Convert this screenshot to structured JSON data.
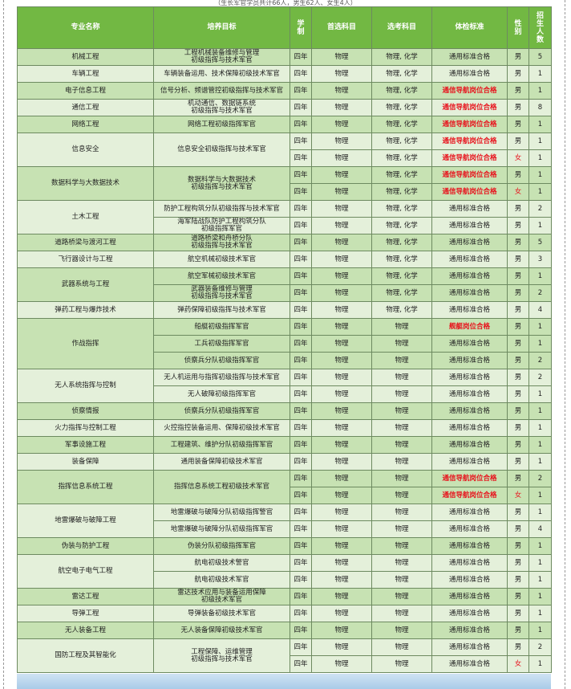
{
  "subtitle": "（生长军官学员共计66人，男生62人、女生4人）",
  "headers": {
    "major": "专业名称",
    "goal": "培养目标",
    "years": "学制",
    "first": "首选科目",
    "elective": "选考科目",
    "physical": "体检标准",
    "gender": "性别",
    "count": "招生人数"
  },
  "colors": {
    "header": "#72b843",
    "shade_dark": "#c7e2b3",
    "shade_light": "#e4f0da",
    "highlight_red": "#e8111b"
  },
  "majors": [
    {
      "name": "机械工程",
      "tracks": [
        {
          "goal": "工程机械装备维修与管理\n初级指挥与技术军官",
          "rows": [
            {
              "years": "四年",
              "first": "物理",
              "elective": "物理, 化学",
              "physical": "通用标准合格",
              "gender": "男",
              "count": "5"
            }
          ]
        }
      ]
    },
    {
      "name": "车辆工程",
      "tracks": [
        {
          "goal": "车辆装备运用、技术保障初级技术军官",
          "rows": [
            {
              "years": "四年",
              "first": "物理",
              "elective": "物理, 化学",
              "physical": "通用标准合格",
              "gender": "男",
              "count": "1"
            }
          ]
        }
      ]
    },
    {
      "name": "电子信息工程",
      "tracks": [
        {
          "goal": "信号分析、频谱管控初级指挥与技术军官",
          "rows": [
            {
              "years": "四年",
              "first": "物理",
              "elective": "物理, 化学",
              "physical": "通信导航岗位合格",
              "special": true,
              "gender": "男",
              "count": "1"
            }
          ]
        }
      ]
    },
    {
      "name": "通信工程",
      "tracks": [
        {
          "goal": "机动通信、数据链系统\n初级指挥与技术军官",
          "rows": [
            {
              "years": "四年",
              "first": "物理",
              "elective": "物理, 化学",
              "physical": "通信导航岗位合格",
              "special": true,
              "gender": "男",
              "count": "8"
            }
          ]
        }
      ]
    },
    {
      "name": "网络工程",
      "tracks": [
        {
          "goal": "网络工程初级指挥军官",
          "rows": [
            {
              "years": "四年",
              "first": "物理",
              "elective": "物理, 化学",
              "physical": "通信导航岗位合格",
              "special": true,
              "gender": "男",
              "count": "1"
            }
          ]
        }
      ]
    },
    {
      "name": "信息安全",
      "tracks": [
        {
          "goal": "信息安全初级指挥与技术军官",
          "rows": [
            {
              "years": "四年",
              "first": "物理",
              "elective": "物理, 化学",
              "physical": "通信导航岗位合格",
              "special": true,
              "gender": "男",
              "count": "1"
            },
            {
              "years": "四年",
              "first": "物理",
              "elective": "物理, 化学",
              "physical": "通信导航岗位合格",
              "special": true,
              "gender": "女",
              "count": "1"
            }
          ]
        }
      ]
    },
    {
      "name": "数据科学与大数据技术",
      "tracks": [
        {
          "goal": "数据科学与大数据技术\n初级指挥与技术军官",
          "rows": [
            {
              "years": "四年",
              "first": "物理",
              "elective": "物理, 化学",
              "physical": "通信导航岗位合格",
              "special": true,
              "gender": "男",
              "count": "1"
            },
            {
              "years": "四年",
              "first": "物理",
              "elective": "物理, 化学",
              "physical": "通信导航岗位合格",
              "special": true,
              "gender": "女",
              "count": "1"
            }
          ]
        }
      ]
    },
    {
      "name": "土木工程",
      "tracks": [
        {
          "goal": "防护工程构筑分队初级指挥与技术军官",
          "rows": [
            {
              "years": "四年",
              "first": "物理",
              "elective": "物理, 化学",
              "physical": "通用标准合格",
              "gender": "男",
              "count": "2"
            }
          ]
        },
        {
          "goal": "海军陆战队防护工程构筑分队\n初级指挥军官",
          "rows": [
            {
              "years": "四年",
              "first": "物理",
              "elective": "物理, 化学",
              "physical": "通用标准合格",
              "gender": "男",
              "count": "1"
            }
          ]
        }
      ]
    },
    {
      "name": "道路桥梁与渡河工程",
      "tracks": [
        {
          "goal": "道路桥梁和舟桥分队\n初级指挥与技术军官",
          "rows": [
            {
              "years": "四年",
              "first": "物理",
              "elective": "物理, 化学",
              "physical": "通用标准合格",
              "gender": "男",
              "count": "5"
            }
          ]
        }
      ]
    },
    {
      "name": "飞行器设计与工程",
      "tracks": [
        {
          "goal": "航空机械初级技术军官",
          "rows": [
            {
              "years": "四年",
              "first": "物理",
              "elective": "物理, 化学",
              "physical": "通用标准合格",
              "gender": "男",
              "count": "3"
            }
          ]
        }
      ]
    },
    {
      "name": "武器系统与工程",
      "tracks": [
        {
          "goal": "航空军械初级技术军官",
          "rows": [
            {
              "years": "四年",
              "first": "物理",
              "elective": "物理, 化学",
              "physical": "通用标准合格",
              "gender": "男",
              "count": "1"
            }
          ]
        },
        {
          "goal": "武器装备维修与管理\n初级指挥与技术军官",
          "rows": [
            {
              "years": "四年",
              "first": "物理",
              "elective": "物理, 化学",
              "physical": "通用标准合格",
              "gender": "男",
              "count": "2"
            }
          ]
        }
      ]
    },
    {
      "name": "弹药工程与爆炸技术",
      "tracks": [
        {
          "goal": "弹药保障初级指挥与技术军官",
          "rows": [
            {
              "years": "四年",
              "first": "物理",
              "elective": "物理, 化学",
              "physical": "通用标准合格",
              "gender": "男",
              "count": "4"
            }
          ]
        }
      ]
    },
    {
      "name": "作战指挥",
      "tracks": [
        {
          "goal": "船艇初级指挥军官",
          "rows": [
            {
              "years": "四年",
              "first": "物理",
              "elective": "物理",
              "physical": "舰艇岗位合格",
              "special": true,
              "gender": "男",
              "count": "1"
            }
          ]
        },
        {
          "goal": "工兵初级指挥军官",
          "rows": [
            {
              "years": "四年",
              "first": "物理",
              "elective": "物理",
              "physical": "通用标准合格",
              "gender": "男",
              "count": "1"
            }
          ]
        },
        {
          "goal": "侦察兵分队初级指挥军官",
          "rows": [
            {
              "years": "四年",
              "first": "物理",
              "elective": "物理",
              "physical": "通用标准合格",
              "gender": "男",
              "count": "2"
            }
          ]
        }
      ]
    },
    {
      "name": "无人系统指挥与控制",
      "tracks": [
        {
          "goal": "无人机运用与指挥初级指挥与技术军官",
          "rows": [
            {
              "years": "四年",
              "first": "物理",
              "elective": "物理",
              "physical": "通用标准合格",
              "gender": "男",
              "count": "2"
            }
          ]
        },
        {
          "goal": "无人破障初级指挥军官",
          "rows": [
            {
              "years": "四年",
              "first": "物理",
              "elective": "物理",
              "physical": "通用标准合格",
              "gender": "男",
              "count": "1"
            }
          ]
        }
      ]
    },
    {
      "name": "侦察情报",
      "tracks": [
        {
          "goal": "侦察兵分队初级指挥军官",
          "rows": [
            {
              "years": "四年",
              "first": "物理",
              "elective": "物理",
              "physical": "通用标准合格",
              "gender": "男",
              "count": "1"
            }
          ]
        }
      ]
    },
    {
      "name": "火力指挥与控制工程",
      "tracks": [
        {
          "goal": "火控指控装备运用、保障初级技术军官",
          "rows": [
            {
              "years": "四年",
              "first": "物理",
              "elective": "物理",
              "physical": "通用标准合格",
              "gender": "男",
              "count": "1"
            }
          ]
        }
      ]
    },
    {
      "name": "军事设施工程",
      "tracks": [
        {
          "goal": "工程建筑、维护分队初级指挥军官",
          "rows": [
            {
              "years": "四年",
              "first": "物理",
              "elective": "物理",
              "physical": "通用标准合格",
              "gender": "男",
              "count": "1"
            }
          ]
        }
      ]
    },
    {
      "name": "装备保障",
      "tracks": [
        {
          "goal": "通用装备保障初级技术军官",
          "rows": [
            {
              "years": "四年",
              "first": "物理",
              "elective": "物理",
              "physical": "通用标准合格",
              "gender": "男",
              "count": "1"
            }
          ]
        }
      ]
    },
    {
      "name": "指挥信息系统工程",
      "tracks": [
        {
          "goal": "指挥信息系统工程初级技术军官",
          "rows": [
            {
              "years": "四年",
              "first": "物理",
              "elective": "物理",
              "physical": "通信导航岗位合格",
              "special": true,
              "gender": "男",
              "count": "2"
            },
            {
              "years": "四年",
              "first": "物理",
              "elective": "物理",
              "physical": "通信导航岗位合格",
              "special": true,
              "gender": "女",
              "count": "1"
            }
          ]
        }
      ]
    },
    {
      "name": "地雷爆破与破障工程",
      "tracks": [
        {
          "goal": "地雷爆破与破障分队初级指挥警官",
          "rows": [
            {
              "years": "四年",
              "first": "物理",
              "elective": "物理",
              "physical": "通用标准合格",
              "gender": "男",
              "count": "1"
            }
          ]
        },
        {
          "goal": "地雷爆破与破障分队初级指挥军官",
          "rows": [
            {
              "years": "四年",
              "first": "物理",
              "elective": "物理",
              "physical": "通用标准合格",
              "gender": "男",
              "count": "4"
            }
          ]
        }
      ]
    },
    {
      "name": "伪装与防护工程",
      "tracks": [
        {
          "goal": "伪装分队初级指挥军官",
          "rows": [
            {
              "years": "四年",
              "first": "物理",
              "elective": "物理",
              "physical": "通用标准合格",
              "gender": "男",
              "count": "1"
            }
          ]
        }
      ]
    },
    {
      "name": "航空电子电气工程",
      "tracks": [
        {
          "goal": "航电初级技术警官",
          "rows": [
            {
              "years": "四年",
              "first": "物理",
              "elective": "物理",
              "physical": "通用标准合格",
              "gender": "男",
              "count": "1"
            }
          ]
        },
        {
          "goal": "航电初级技术军官",
          "rows": [
            {
              "years": "四年",
              "first": "物理",
              "elective": "物理",
              "physical": "通用标准合格",
              "gender": "男",
              "count": "1"
            }
          ]
        }
      ]
    },
    {
      "name": "雷达工程",
      "tracks": [
        {
          "goal": "雷达技术应用与装备运用保障\n初级技术军官",
          "rows": [
            {
              "years": "四年",
              "first": "物理",
              "elective": "物理",
              "physical": "通用标准合格",
              "gender": "男",
              "count": "1"
            }
          ]
        }
      ]
    },
    {
      "name": "导弹工程",
      "tracks": [
        {
          "goal": "导弹装备初级技术军官",
          "rows": [
            {
              "years": "四年",
              "first": "物理",
              "elective": "物理",
              "physical": "通用标准合格",
              "gender": "男",
              "count": "1"
            }
          ]
        }
      ]
    },
    {
      "name": "无人装备工程",
      "tracks": [
        {
          "goal": "无人装备保障初级技术军官",
          "rows": [
            {
              "years": "四年",
              "first": "物理",
              "elective": "物理",
              "physical": "通用标准合格",
              "gender": "男",
              "count": "1"
            }
          ]
        }
      ]
    },
    {
      "name": "国防工程及其智能化",
      "tracks": [
        {
          "goal": "工程保障、运维管理\n初级指挥与技术军官",
          "rows": [
            {
              "years": "四年",
              "first": "物理",
              "elective": "物理",
              "physical": "通用标准合格",
              "gender": "男",
              "count": "2"
            },
            {
              "years": "四年",
              "first": "物理",
              "elective": "物理",
              "physical": "通用标准合格",
              "gender": "女",
              "count": "1"
            }
          ]
        }
      ]
    }
  ]
}
